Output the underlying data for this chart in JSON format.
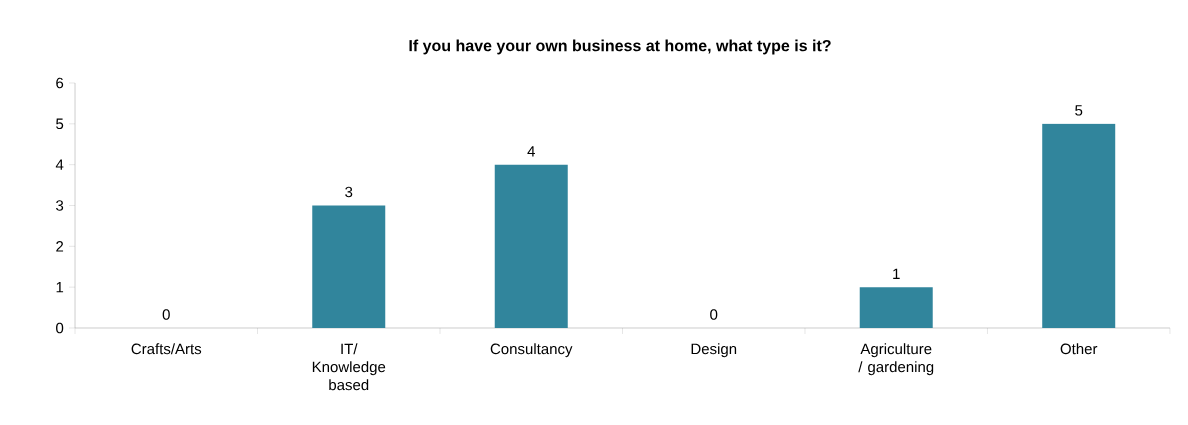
{
  "chart_data": {
    "type": "bar",
    "title": "If you have your own business at home, what type is it?",
    "categories": [
      "Crafts/Arts",
      "IT/ Knowledge based",
      "Consultancy",
      "Design",
      "Agriculture / gardening",
      "Other"
    ],
    "values": [
      0,
      3,
      4,
      0,
      1,
      5
    ],
    "color": "#31859c",
    "ylim": [
      0,
      6
    ],
    "yticks": [
      0,
      1,
      2,
      3,
      4,
      5,
      6
    ],
    "data_labels": true
  }
}
